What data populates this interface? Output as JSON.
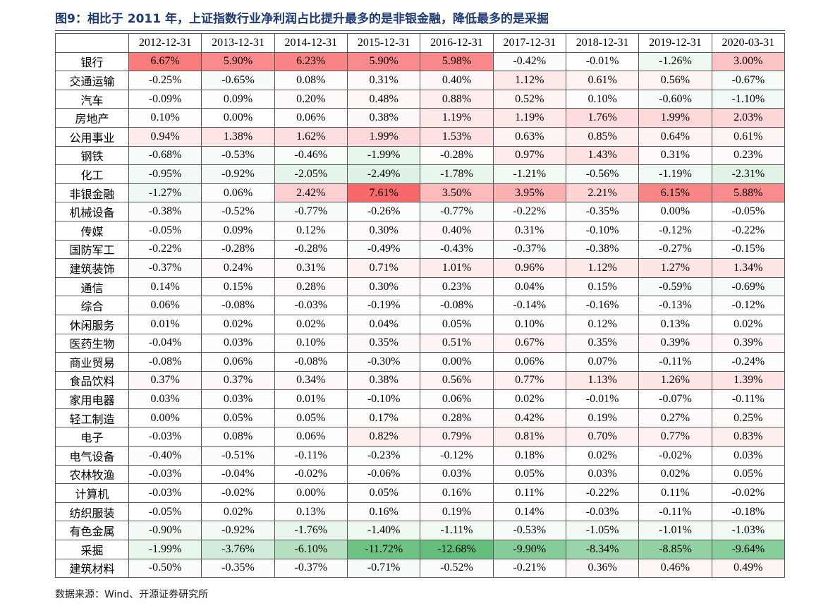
{
  "title": "图9：相比于 2011 年，上证指数行业净利润占比提升最多的是非银金融，降低最多的是采掘",
  "table": {
    "columns": [
      "2012-12-31",
      "2013-12-31",
      "2014-12-31",
      "2015-12-31",
      "2016-12-31",
      "2017-12-31",
      "2018-12-31",
      "2019-12-31",
      "2020-03-31"
    ],
    "color_scale": {
      "low": "#63be7b",
      "mid": "#ffffff",
      "high": "#f8696b"
    },
    "rows": [
      {
        "label": "银行",
        "cells": [
          "6.67%",
          "5.90%",
          "6.23%",
          "5.90%",
          "5.98%",
          "-0.42%",
          "-0.01%",
          "-1.26%",
          "3.00%"
        ]
      },
      {
        "label": "交通运输",
        "cells": [
          "-0.25%",
          "-0.65%",
          "0.08%",
          "0.31%",
          "0.40%",
          "1.12%",
          "0.61%",
          "0.56%",
          "-0.67%"
        ]
      },
      {
        "label": "汽车",
        "cells": [
          "-0.09%",
          "0.09%",
          "0.20%",
          "0.48%",
          "0.88%",
          "0.52%",
          "0.10%",
          "-0.60%",
          "-1.10%"
        ]
      },
      {
        "label": "房地产",
        "cells": [
          "0.10%",
          "0.00%",
          "0.06%",
          "0.38%",
          "1.19%",
          "1.19%",
          "1.76%",
          "1.99%",
          "2.03%"
        ]
      },
      {
        "label": "公用事业",
        "cells": [
          "0.94%",
          "1.38%",
          "1.62%",
          "1.99%",
          "1.53%",
          "0.63%",
          "0.85%",
          "0.64%",
          "0.61%"
        ]
      },
      {
        "label": "钢铁",
        "cells": [
          "-0.68%",
          "-0.53%",
          "-0.46%",
          "-1.99%",
          "-0.28%",
          "0.97%",
          "1.43%",
          "0.31%",
          "0.23%"
        ]
      },
      {
        "label": "化工",
        "cells": [
          "-0.95%",
          "-0.92%",
          "-2.05%",
          "-2.49%",
          "-1.78%",
          "-1.21%",
          "-0.56%",
          "-1.19%",
          "-2.31%"
        ]
      },
      {
        "label": "非银金融",
        "cells": [
          "-1.27%",
          "0.06%",
          "2.42%",
          "7.61%",
          "3.50%",
          "3.95%",
          "2.21%",
          "6.15%",
          "5.88%"
        ]
      },
      {
        "label": "机械设备",
        "cells": [
          "-0.38%",
          "-0.52%",
          "-0.77%",
          "-0.26%",
          "-0.77%",
          "-0.22%",
          "-0.35%",
          "0.00%",
          "-0.05%"
        ]
      },
      {
        "label": "传媒",
        "cells": [
          "-0.05%",
          "0.09%",
          "0.12%",
          "0.30%",
          "0.40%",
          "0.31%",
          "-0.10%",
          "-0.12%",
          "-0.22%"
        ]
      },
      {
        "label": "国防军工",
        "cells": [
          "-0.22%",
          "-0.28%",
          "-0.28%",
          "-0.49%",
          "-0.43%",
          "-0.37%",
          "-0.38%",
          "-0.27%",
          "-0.15%"
        ]
      },
      {
        "label": "建筑装饰",
        "cells": [
          "-0.37%",
          "0.24%",
          "0.31%",
          "0.71%",
          "1.01%",
          "0.96%",
          "1.12%",
          "1.27%",
          "1.34%"
        ]
      },
      {
        "label": "通信",
        "cells": [
          "0.14%",
          "0.15%",
          "0.28%",
          "0.30%",
          "0.23%",
          "0.04%",
          "0.15%",
          "-0.59%",
          "-0.69%"
        ]
      },
      {
        "label": "综合",
        "cells": [
          "0.06%",
          "-0.08%",
          "-0.03%",
          "-0.19%",
          "-0.08%",
          "-0.14%",
          "-0.16%",
          "-0.13%",
          "-0.12%"
        ]
      },
      {
        "label": "休闲服务",
        "cells": [
          "0.01%",
          "0.02%",
          "0.02%",
          "0.04%",
          "0.05%",
          "0.10%",
          "0.12%",
          "0.13%",
          "0.02%"
        ]
      },
      {
        "label": "医药生物",
        "cells": [
          "-0.04%",
          "0.03%",
          "0.10%",
          "0.35%",
          "0.51%",
          "0.67%",
          "0.35%",
          "0.39%",
          "0.39%"
        ]
      },
      {
        "label": "商业贸易",
        "cells": [
          "-0.08%",
          "0.06%",
          "-0.08%",
          "-0.30%",
          "0.00%",
          "0.06%",
          "0.07%",
          "-0.11%",
          "-0.24%"
        ]
      },
      {
        "label": "食品饮料",
        "cells": [
          "0.37%",
          "0.37%",
          "0.34%",
          "0.38%",
          "0.56%",
          "0.77%",
          "1.13%",
          "1.26%",
          "1.39%"
        ]
      },
      {
        "label": "家用电器",
        "cells": [
          "0.03%",
          "0.03%",
          "0.01%",
          "-0.10%",
          "0.06%",
          "0.02%",
          "-0.01%",
          "-0.07%",
          "-0.11%"
        ]
      },
      {
        "label": "轻工制造",
        "cells": [
          "0.00%",
          "0.05%",
          "0.05%",
          "0.17%",
          "0.28%",
          "0.42%",
          "0.19%",
          "0.27%",
          "0.25%"
        ]
      },
      {
        "label": "电子",
        "cells": [
          "-0.03%",
          "0.08%",
          "0.06%",
          "0.82%",
          "0.79%",
          "0.81%",
          "0.70%",
          "0.77%",
          "0.83%"
        ]
      },
      {
        "label": "电气设备",
        "cells": [
          "-0.40%",
          "-0.51%",
          "-0.11%",
          "-0.23%",
          "-0.12%",
          "0.18%",
          "0.02%",
          "-0.02%",
          "0.03%"
        ]
      },
      {
        "label": "农林牧渔",
        "cells": [
          "-0.03%",
          "-0.04%",
          "-0.02%",
          "-0.06%",
          "0.03%",
          "0.05%",
          "0.03%",
          "0.02%",
          "0.05%"
        ]
      },
      {
        "label": "计算机",
        "cells": [
          "-0.03%",
          "-0.02%",
          "0.00%",
          "0.05%",
          "0.16%",
          "0.11%",
          "-0.22%",
          "0.11%",
          "-0.02%"
        ]
      },
      {
        "label": "纺织服装",
        "cells": [
          "-0.05%",
          "0.02%",
          "0.13%",
          "0.16%",
          "0.19%",
          "0.14%",
          "-0.03%",
          "-0.11%",
          "-0.18%"
        ]
      },
      {
        "label": "有色金属",
        "cells": [
          "-0.90%",
          "-0.92%",
          "-1.76%",
          "-1.40%",
          "-1.11%",
          "-0.53%",
          "-1.05%",
          "-1.01%",
          "-1.03%"
        ]
      },
      {
        "label": "采掘",
        "cells": [
          "-1.99%",
          "-3.76%",
          "-6.10%",
          "-11.72%",
          "-12.68%",
          "-9.90%",
          "-8.34%",
          "-8.85%",
          "-9.64%"
        ]
      },
      {
        "label": "建筑材料",
        "cells": [
          "-0.50%",
          "-0.35%",
          "-0.37%",
          "-0.71%",
          "-0.52%",
          "-0.21%",
          "0.36%",
          "0.46%",
          "0.49%"
        ]
      }
    ]
  },
  "source": "数据来源：Wind、开源证券研究所"
}
